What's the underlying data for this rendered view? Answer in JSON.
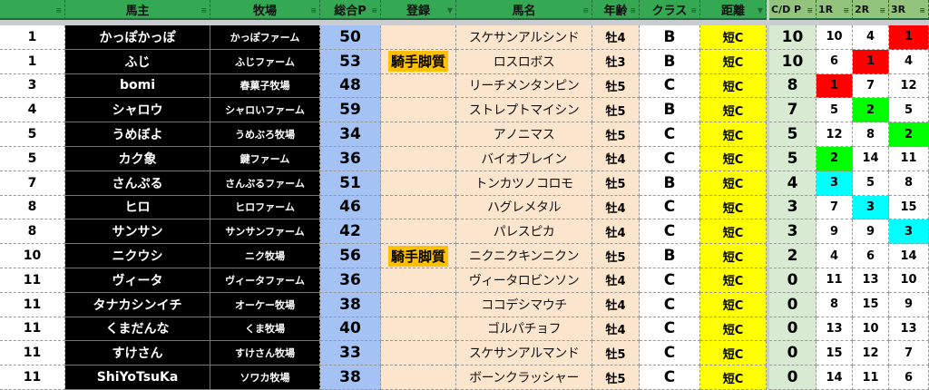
{
  "header": {
    "rank": "",
    "owner": "馬主",
    "farm": "牧場",
    "total": "総合P",
    "registration": "登録",
    "horse": "馬名",
    "age": "年齢",
    "class": "クラス",
    "distance": "距離",
    "cd_points": "C/D P",
    "r1": "1R",
    "r2": "2R",
    "r3": "3R"
  },
  "colors": {
    "header": "#34a853",
    "first": "#ff0000",
    "second": "#00ff00",
    "third": "#00ffff"
  },
  "rows": [
    {
      "rank": "1",
      "owner": "かっぽかっぽ",
      "farm": "かっぽファーム",
      "total": "50",
      "registration": "",
      "horse": "スケサンアルシンド",
      "age": "牡4",
      "class": "B",
      "distance": "短C",
      "cd": "10",
      "r1": "10",
      "r2": "4",
      "r3": "1"
    },
    {
      "rank": "1",
      "owner": "ふじ",
      "farm": "ふじファーム",
      "total": "53",
      "registration": "騎手脚質",
      "horse": "ロスロボス",
      "age": "牡3",
      "class": "B",
      "distance": "短C",
      "cd": "10",
      "r1": "6",
      "r2": "1",
      "r3": "4"
    },
    {
      "rank": "3",
      "owner": "bomi",
      "farm": "春菓子牧場",
      "total": "48",
      "registration": "",
      "horse": "リーチメンタンピン",
      "age": "牡5",
      "class": "C",
      "distance": "短C",
      "cd": "8",
      "r1": "1",
      "r2": "7",
      "r3": "12"
    },
    {
      "rank": "4",
      "owner": "シャロウ",
      "farm": "シャロいファーム",
      "total": "59",
      "registration": "",
      "horse": "ストレプトマイシン",
      "age": "牡5",
      "class": "B",
      "distance": "短C",
      "cd": "7",
      "r1": "5",
      "r2": "2",
      "r3": "5"
    },
    {
      "rank": "5",
      "owner": "うめぼよ",
      "farm": "うめぶろ牧場",
      "total": "34",
      "registration": "",
      "horse": "アノニマス",
      "age": "牡5",
      "class": "C",
      "distance": "短C",
      "cd": "5",
      "r1": "12",
      "r2": "8",
      "r3": "2"
    },
    {
      "rank": "5",
      "owner": "カク象",
      "farm": "鍵ファーム",
      "total": "36",
      "registration": "",
      "horse": "バイオブレイン",
      "age": "牡4",
      "class": "C",
      "distance": "短C",
      "cd": "5",
      "r1": "2",
      "r2": "14",
      "r3": "11"
    },
    {
      "rank": "7",
      "owner": "さんぷる",
      "farm": "さんぷるファーム",
      "total": "51",
      "registration": "",
      "horse": "トンカツノコロモ",
      "age": "牡5",
      "class": "B",
      "distance": "短C",
      "cd": "4",
      "r1": "3",
      "r2": "5",
      "r3": "8"
    },
    {
      "rank": "8",
      "owner": "ヒロ",
      "farm": "ヒロファーム",
      "total": "46",
      "registration": "",
      "horse": "ハグレメタル",
      "age": "牡4",
      "class": "C",
      "distance": "短C",
      "cd": "3",
      "r1": "7",
      "r2": "3",
      "r3": "15"
    },
    {
      "rank": "8",
      "owner": "サンサン",
      "farm": "サンサンファーム",
      "total": "42",
      "registration": "",
      "horse": "パレスピカ",
      "age": "牡4",
      "class": "C",
      "distance": "短C",
      "cd": "3",
      "r1": "9",
      "r2": "9",
      "r3": "3"
    },
    {
      "rank": "10",
      "owner": "ニクウシ",
      "farm": "ニク牧場",
      "total": "56",
      "registration": "騎手脚質",
      "horse": "ニクニクキンニクン",
      "age": "牡5",
      "class": "B",
      "distance": "短C",
      "cd": "2",
      "r1": "4",
      "r2": "6",
      "r3": "14"
    },
    {
      "rank": "11",
      "owner": "ヴィータ",
      "farm": "ヴィータファーム",
      "total": "36",
      "registration": "",
      "horse": "ヴィータロビンソン",
      "age": "牡4",
      "class": "C",
      "distance": "短C",
      "cd": "0",
      "r1": "11",
      "r2": "13",
      "r3": "10"
    },
    {
      "rank": "11",
      "owner": "タナカシンイチ",
      "farm": "オーケー牧場",
      "total": "38",
      "registration": "",
      "horse": "ココデシマウチ",
      "age": "牡4",
      "class": "C",
      "distance": "短C",
      "cd": "0",
      "r1": "8",
      "r2": "15",
      "r3": "9"
    },
    {
      "rank": "11",
      "owner": "くまだんな",
      "farm": "くま牧場",
      "total": "40",
      "registration": "",
      "horse": "ゴルパチョフ",
      "age": "牡4",
      "class": "C",
      "distance": "短C",
      "cd": "0",
      "r1": "13",
      "r2": "10",
      "r3": "13"
    },
    {
      "rank": "11",
      "owner": "すけさん",
      "farm": "すけさん牧場",
      "total": "33",
      "registration": "",
      "horse": "スケサンアルマンド",
      "age": "牡5",
      "class": "C",
      "distance": "短C",
      "cd": "0",
      "r1": "15",
      "r2": "12",
      "r3": "7"
    },
    {
      "rank": "11",
      "owner": "ShiYoTsuKa",
      "farm": "ソワカ牧場",
      "total": "38",
      "registration": "",
      "horse": "ボーンクラッシャー",
      "age": "牡5",
      "class": "C",
      "distance": "短C",
      "cd": "0",
      "r1": "14",
      "r2": "11",
      "r3": "6"
    }
  ]
}
